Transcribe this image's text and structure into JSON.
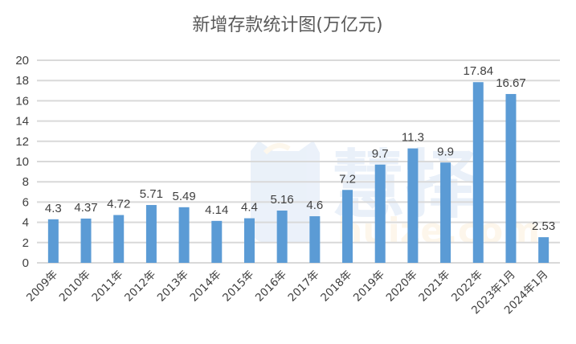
{
  "chart_data": {
    "type": "bar",
    "title": "新增存款统计图(万亿元)",
    "xlabel": "",
    "ylabel": "",
    "ylim": [
      0,
      20
    ],
    "yticks": [
      0,
      2,
      4,
      6,
      8,
      10,
      12,
      14,
      16,
      18,
      20
    ],
    "ytick_labels": [
      "0",
      "2",
      "4",
      "6",
      "8",
      "10",
      "12",
      "14",
      "16",
      "18",
      "20"
    ],
    "grid": true,
    "legend": "none",
    "categories": [
      "2009年",
      "2010年",
      "2011年",
      "2012年",
      "2013年",
      "2014年",
      "2015年",
      "2016年",
      "2017年",
      "2018年",
      "2019年",
      "2020年",
      "2021年",
      "2022年",
      "2023年1月",
      "2024年1月"
    ],
    "values": [
      4.3,
      4.37,
      4.72,
      5.71,
      5.49,
      4.14,
      4.4,
      5.16,
      4.6,
      7.2,
      9.7,
      11.3,
      9.9,
      17.84,
      16.67,
      2.53
    ],
    "data_labels": [
      "4.3",
      "4.37",
      "4.72",
      "5.71",
      "5.49",
      "4.14",
      "4.4",
      "5.16",
      "4.6",
      "7.2",
      "9.7",
      "11.3",
      "9.9",
      "17.84",
      "16.67",
      "2.53"
    ],
    "bar_color": "#5b9bd5",
    "grid_color": "#d9d9d9"
  },
  "watermark": {
    "logo_text": "慧择",
    "site_text": "huize.com"
  }
}
